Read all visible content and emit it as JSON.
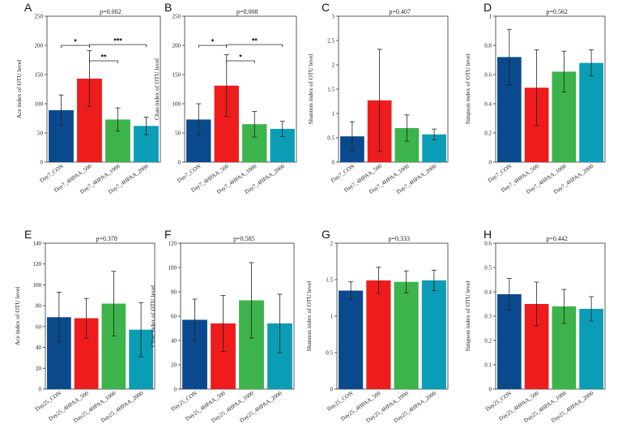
{
  "colors": {
    "CON": "#0a4a8c",
    "4HPAA_500": "#ee1c1c",
    "4HPAA_1000": "#3cb44b",
    "4HPAA_2000": "#0b9db5"
  },
  "chart_data": [
    {
      "type": "bar",
      "panel": "A",
      "pvalue": "p=0.002",
      "ylabel": "Ace index of OTU level",
      "categories": [
        "Day7_CON",
        "Day7_4HPAA_500",
        "Day7_4HPAA_1000",
        "Day7_4HPAA_2000"
      ],
      "values": [
        89,
        143,
        73,
        62
      ],
      "errors": [
        26,
        48,
        20,
        15
      ],
      "ylim": [
        0,
        250
      ],
      "yticks": [
        "0",
        "50",
        "100",
        "150",
        "200",
        "250"
      ],
      "significance": [
        {
          "from": 0,
          "to": 1,
          "label": "*"
        },
        {
          "from": 1,
          "to": 2,
          "label": "**"
        },
        {
          "from": 1,
          "to": 3,
          "label": "***"
        }
      ]
    },
    {
      "type": "bar",
      "panel": "B",
      "pvalue": "p=0.008",
      "ylabel": "Chao index of OTU level",
      "categories": [
        "Day7_CON",
        "Day7_4HPAA_500",
        "Day7_4HPAA_1000",
        "Day7_4HPAA_2000"
      ],
      "values": [
        73,
        131,
        65,
        57
      ],
      "errors": [
        27,
        53,
        22,
        13
      ],
      "ylim": [
        0,
        250
      ],
      "yticks": [
        "0",
        "50",
        "100",
        "150",
        "200",
        "250"
      ],
      "significance": [
        {
          "from": 0,
          "to": 1,
          "label": "*"
        },
        {
          "from": 1,
          "to": 2,
          "label": "*"
        },
        {
          "from": 1,
          "to": 3,
          "label": "**"
        }
      ]
    },
    {
      "type": "bar",
      "panel": "C",
      "pvalue": "p=0.407",
      "ylabel": "Shannon index of OTU level",
      "categories": [
        "Day7_CON",
        "Day7_4HPAA_500",
        "Day7_4HPAA_1000",
        "Day7_4HPAA_2000"
      ],
      "values": [
        0.53,
        1.27,
        0.7,
        0.57
      ],
      "errors": [
        0.3,
        1.05,
        0.27,
        0.11
      ],
      "ylim": [
        0,
        3
      ],
      "yticks": [
        "0",
        "0.5",
        "1",
        "1.5",
        "2",
        "2.5",
        "3"
      ],
      "significance": []
    },
    {
      "type": "bar",
      "panel": "D",
      "pvalue": "p=0.562",
      "ylabel": "Simpson index of OTU level",
      "categories": [
        "Day7_CON",
        "Day7_4HPAA_500",
        "Day7_4HPAA_1000",
        "Day7_4HPAA_2000"
      ],
      "values": [
        0.72,
        0.51,
        0.62,
        0.68
      ],
      "errors": [
        0.19,
        0.26,
        0.14,
        0.09
      ],
      "ylim": [
        0,
        1
      ],
      "yticks": [
        "0",
        "0.2",
        "0.4",
        "0.6",
        "0.8",
        "1"
      ],
      "significance": []
    },
    {
      "type": "bar",
      "panel": "E",
      "pvalue": "p=0.378",
      "ylabel": "Ace index of OTU level",
      "categories": [
        "Day25_CON",
        "Day25_4HPAA_500",
        "Day25_4HPAA_1000",
        "Day25_4HPAA_2000"
      ],
      "values": [
        69,
        68,
        82,
        57
      ],
      "errors": [
        24,
        19,
        31,
        26
      ],
      "ylim": [
        0,
        140
      ],
      "yticks": [
        "0",
        "20",
        "40",
        "60",
        "80",
        "100",
        "120",
        "140"
      ],
      "significance": []
    },
    {
      "type": "bar",
      "panel": "F",
      "pvalue": "p=0.585",
      "ylabel": "Chao index of OTU level",
      "categories": [
        "Day25_CON",
        "Day25_4HPAA_500",
        "Day25_4HPAA_1000",
        "Day25_4HPAA_2000"
      ],
      "values": [
        57,
        54,
        73,
        54
      ],
      "errors": [
        17,
        23,
        31,
        24
      ],
      "ylim": [
        0,
        120
      ],
      "yticks": [
        "0",
        "20",
        "40",
        "60",
        "80",
        "100",
        "120"
      ],
      "significance": []
    },
    {
      "type": "bar",
      "panel": "G",
      "pvalue": "p=0.333",
      "ylabel": "Shannon index of OTU level",
      "categories": [
        "Day25_CON",
        "Day25_4HPAA_500",
        "Day25_4HPAA_1000",
        "Day25_4HPAA_2000"
      ],
      "values": [
        1.35,
        1.49,
        1.47,
        1.49
      ],
      "errors": [
        0.12,
        0.18,
        0.15,
        0.14
      ],
      "ylim": [
        0,
        2
      ],
      "yticks": [
        "0",
        "0.5",
        "1",
        "1.5",
        "2"
      ],
      "significance": []
    },
    {
      "type": "bar",
      "panel": "H",
      "pvalue": "p=0.442",
      "ylabel": "Simpson index of OTU level",
      "categories": [
        "Day25_CON",
        "Day25_4HPAA_500",
        "Day25_4HPAA_1000",
        "Day25_4HPAA_2000"
      ],
      "values": [
        0.39,
        0.35,
        0.34,
        0.33
      ],
      "errors": [
        0.065,
        0.09,
        0.07,
        0.05
      ],
      "ylim": [
        0,
        0.6
      ],
      "yticks": [
        "0",
        "0.1",
        "0.2",
        "0.3",
        "0.4",
        "0.5",
        "0.6"
      ],
      "significance": []
    }
  ]
}
